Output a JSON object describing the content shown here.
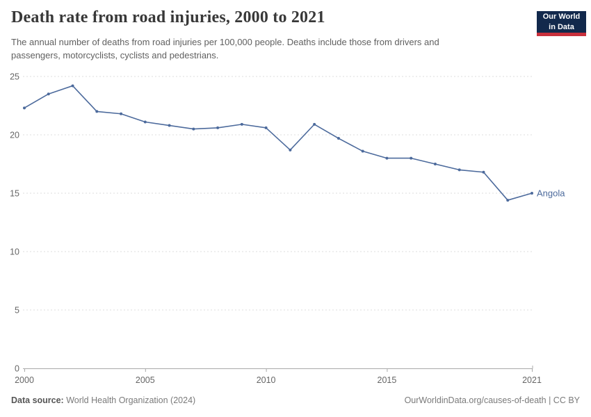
{
  "header": {
    "title": "Death rate from road injuries, 2000 to 2021",
    "subtitle": "The annual number of deaths from road injuries per 100,000 people. Deaths include those from drivers and passengers, motorcyclists, cyclists and pedestrians.",
    "logo": {
      "line1": "Our World",
      "line2": "in Data",
      "bg_color": "#12294c",
      "accent_color": "#c8303c"
    }
  },
  "footer": {
    "datasource_label": "Data source:",
    "datasource_value": "World Health Organization (2024)",
    "credit": "OurWorldinData.org/causes-of-death | CC BY"
  },
  "chart_data": {
    "type": "line",
    "title": "Death rate from road injuries, 2000 to 2021",
    "xlabel": "",
    "ylabel": "",
    "xlim": [
      2000,
      2021
    ],
    "ylim": [
      0,
      25
    ],
    "x_ticks": [
      2000,
      2005,
      2010,
      2015,
      2021
    ],
    "y_ticks": [
      0,
      5,
      10,
      15,
      20,
      25
    ],
    "grid": "horizontal-dashed",
    "legend_position": "end-of-line",
    "x": [
      2000,
      2001,
      2002,
      2003,
      2004,
      2005,
      2006,
      2007,
      2008,
      2009,
      2010,
      2011,
      2012,
      2013,
      2014,
      2015,
      2016,
      2017,
      2018,
      2019,
      2020,
      2021
    ],
    "series": [
      {
        "name": "Angola",
        "color": "#4C6A9C",
        "values": [
          22.3,
          23.5,
          24.2,
          22.0,
          21.8,
          21.1,
          20.8,
          20.5,
          20.6,
          20.9,
          20.6,
          18.7,
          20.9,
          19.7,
          18.6,
          18.0,
          18.0,
          17.5,
          17.0,
          16.8,
          14.4,
          15.0
        ]
      }
    ],
    "axis_color": "#a8a8a8",
    "gridline_color": "#dedede",
    "tick_label_color": "#666666"
  }
}
